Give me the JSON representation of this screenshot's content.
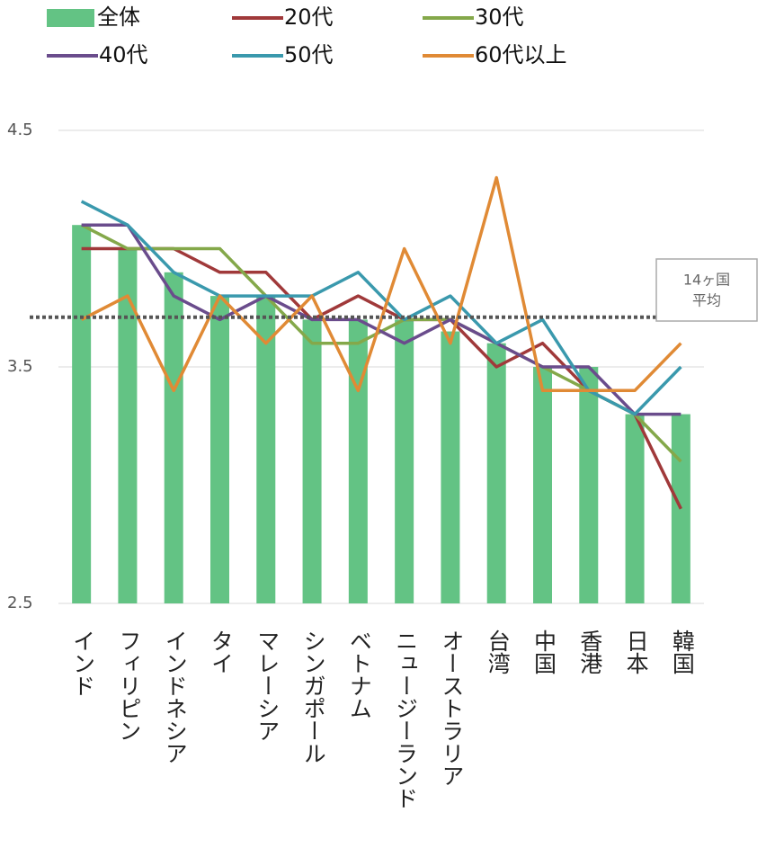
{
  "chart_data": {
    "type": "bar_line",
    "categories": [
      "インド",
      "フィリピン",
      "インドネシア",
      "タイ",
      "マレーシア",
      "シンガポール",
      "ベトナム",
      "ニュージーランド",
      "オーストラリア",
      "台湾",
      "中国",
      "香港",
      "日本",
      "韓国"
    ],
    "series": [
      {
        "name": "全体",
        "type": "bar",
        "color": "#63c384",
        "values": [
          4.1,
          4.0,
          3.9,
          3.8,
          3.8,
          3.7,
          3.7,
          3.7,
          3.65,
          3.6,
          3.5,
          3.5,
          3.3,
          3.3
        ]
      },
      {
        "name": "20代",
        "type": "line",
        "color": "#a0393a",
        "values": [
          4.0,
          4.0,
          4.0,
          3.9,
          3.9,
          3.7,
          3.8,
          3.7,
          3.7,
          3.5,
          3.6,
          3.4,
          3.3,
          2.9
        ]
      },
      {
        "name": "30代",
        "type": "line",
        "color": "#84a84a",
        "values": [
          4.1,
          4.0,
          4.0,
          4.0,
          3.8,
          3.6,
          3.6,
          3.7,
          3.7,
          3.6,
          3.5,
          3.4,
          3.3,
          3.1
        ]
      },
      {
        "name": "40代",
        "type": "line",
        "color": "#6a4c8c",
        "values": [
          4.1,
          4.1,
          3.8,
          3.7,
          3.8,
          3.7,
          3.7,
          3.6,
          3.7,
          3.6,
          3.5,
          3.5,
          3.3,
          3.3
        ]
      },
      {
        "name": "50代",
        "type": "line",
        "color": "#3a99ad",
        "values": [
          4.2,
          4.1,
          3.9,
          3.8,
          3.8,
          3.8,
          3.9,
          3.7,
          3.8,
          3.6,
          3.7,
          3.4,
          3.3,
          3.5
        ]
      },
      {
        "name": "60代以上",
        "type": "line",
        "color": "#e08a35",
        "values": [
          3.7,
          3.8,
          3.4,
          3.8,
          3.6,
          3.8,
          3.4,
          4.0,
          3.6,
          4.3,
          3.4,
          3.4,
          3.4,
          3.6
        ]
      }
    ],
    "average": {
      "value": 3.71,
      "label_lines": [
        "14ヶ国",
        "平均"
      ]
    },
    "ylim": [
      2.5,
      4.5
    ],
    "yticks": [
      2.5,
      3.5,
      4.5
    ],
    "grid": true
  }
}
